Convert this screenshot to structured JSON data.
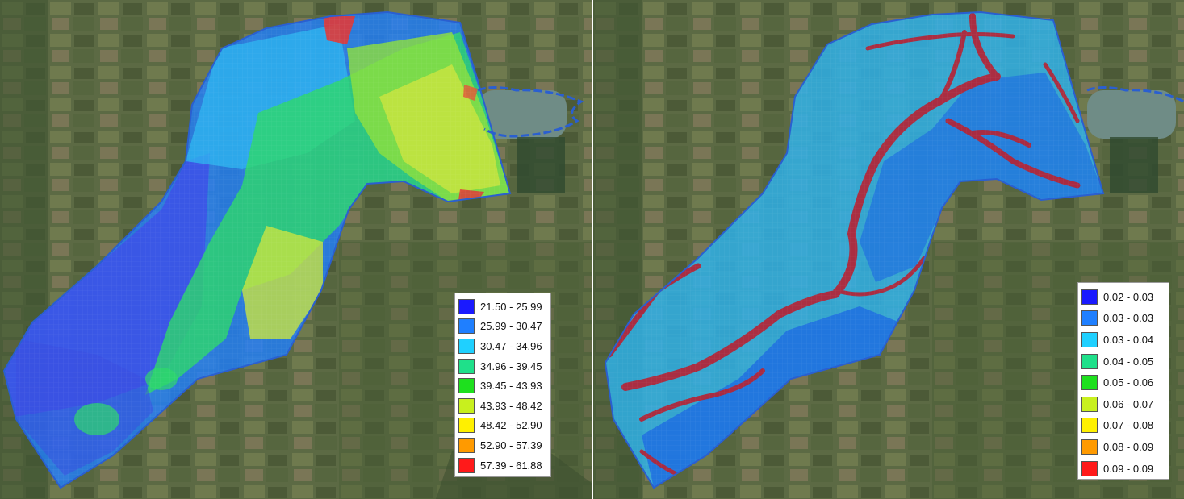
{
  "maps": [
    {
      "id": "left",
      "legend": [
        {
          "label": "21.50 - 25.99",
          "color": "#1a1aff"
        },
        {
          "label": "25.99 - 30.47",
          "color": "#1f7fff"
        },
        {
          "label": "30.47 - 34.96",
          "color": "#1fd0ff"
        },
        {
          "label": "34.96 - 39.45",
          "color": "#1fe08a"
        },
        {
          "label": "39.45 - 43.93",
          "color": "#1ee01e"
        },
        {
          "label": "43.93 - 48.42",
          "color": "#c8f01e"
        },
        {
          "label": "48.42 - 52.90",
          "color": "#fff000"
        },
        {
          "label": "52.90 - 57.39",
          "color": "#ff9a00"
        },
        {
          "label": "57.39 - 61.88",
          "color": "#ff1a1a"
        }
      ]
    },
    {
      "id": "right",
      "legend": [
        {
          "label": "0.02 - 0.03",
          "color": "#1a1aff"
        },
        {
          "label": "0.03 - 0.03",
          "color": "#1f7fff"
        },
        {
          "label": "0.03 - 0.04",
          "color": "#1fd0ff"
        },
        {
          "label": "0.04 - 0.05",
          "color": "#1fe08a"
        },
        {
          "label": "0.05 - 0.06",
          "color": "#1ee01e"
        },
        {
          "label": "0.06 - 0.07",
          "color": "#c8f01e"
        },
        {
          "label": "0.07 - 0.08",
          "color": "#fff000"
        },
        {
          "label": "0.08 - 0.09",
          "color": "#ff9a00"
        },
        {
          "label": "0.09 - 0.09",
          "color": "#ff1a1a"
        }
      ]
    }
  ],
  "colors": {
    "boundary": "#2a5fd0",
    "reservoir": "#6f8c86",
    "satellite_base": "#55623f"
  }
}
